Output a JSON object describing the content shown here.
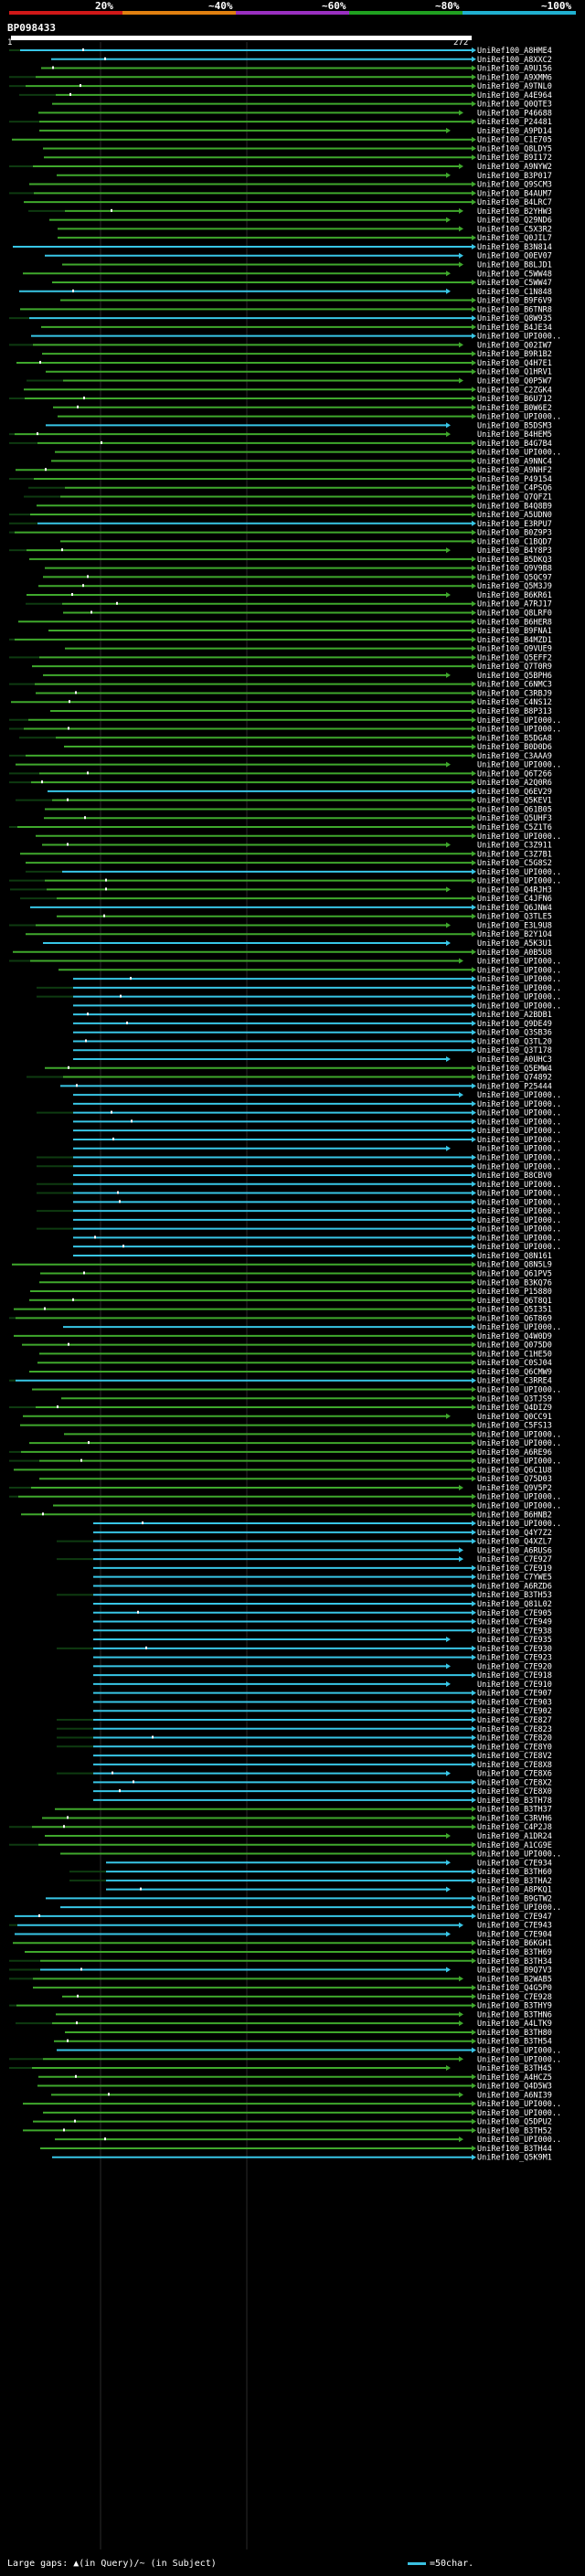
{
  "header": {
    "scale_labels": [
      "20%",
      "~40%",
      "~60%",
      "~80%",
      "~100%"
    ],
    "scale_colors": [
      "#d01818",
      "#e08010",
      "#9a30c0",
      "#20a020",
      "#20b0d0"
    ]
  },
  "query": {
    "id": "BP098433",
    "start": "1",
    "end": "272"
  },
  "legend": {
    "gaps_label": "Large gaps: ▲(in Query)/~ (in Subject)",
    "scale_label": "=50char."
  },
  "colors": {
    "green": "#3fa82c",
    "cyan": "#38c6e6",
    "dark": "#0e3a10"
  },
  "chart_data": {
    "type": "alignment-overview",
    "title": "BP098433",
    "query_range": [
      1,
      272
    ],
    "hits": [
      "UniRef100_A8HME4",
      "UniRef100_A8XXC2",
      "UniRef100_A9U156",
      "UniRef100_A9XMM6",
      "UniRef100_A9TNL0",
      "UniRef100_A4E964",
      "UniRef100_Q0QTE3",
      "UniRef100_P46688",
      "UniRef100_P24481",
      "UniRef100_A9PD14",
      "UniRef100_C1E705",
      "UniRef100_Q8LDY5",
      "UniRef100_B9I172",
      "UniRef100_A9NYW2",
      "UniRef100_B3P017",
      "UniRef100_Q9SCM3",
      "UniRef100_B4AUM7",
      "UniRef100_B4LRC7",
      "UniRef100_B2YHW3",
      "UniRef100_Q29ND6",
      "UniRef100_C5X3R2",
      "UniRef100_Q0JIL7",
      "UniRef100_B3N814",
      "UniRef100_Q0EV07",
      "UniRef100_B8LJD1",
      "UniRef100_C5WW48",
      "UniRef100_C5WW47",
      "UniRef100_C1N848",
      "UniRef100_B9F6V9",
      "UniRef100_B6TNR8",
      "UniRef100_Q8W935",
      "UniRef100_B4JE34",
      "UniRef100_UPI000..",
      "UniRef100_Q02IW7",
      "UniRef100_B9R1B2",
      "UniRef100_Q4H7E1",
      "UniRef100_Q1HRV1",
      "UniRef100_Q0P5W7",
      "UniRef100_C2ZGK4",
      "UniRef100_B6U712",
      "UniRef100_B0W6E2",
      "UniRef100_UPI000..",
      "UniRef100_B5DSM3",
      "UniRef100_B4HEM5",
      "UniRef100_B4G7B4",
      "UniRef100_UPI000..",
      "UniRef100_A9NNC4",
      "UniRef100_A9NHF2",
      "UniRef100_P49154",
      "UniRef100_C4PSQ6",
      "UniRef100_Q7QFZ1",
      "UniRef100_B4Q8B9",
      "UniRef100_A5UDN0",
      "UniRef100_E3RPU7",
      "UniRef100_B0Z9P3",
      "UniRef100_C1BQD7",
      "UniRef100_B4Y8P3",
      "UniRef100_B5DKQ3",
      "UniRef100_Q9V9B8",
      "UniRef100_Q5QC97",
      "UniRef100_Q5M3J9",
      "UniRef100_B6KR61",
      "UniRef100_A7RJ17",
      "UniRef100_Q8LRF0",
      "UniRef100_B6HER8",
      "UniRef100_B9FNA1",
      "UniRef100_B4MZD1",
      "UniRef100_Q9VUE9",
      "UniRef100_Q5EFF2",
      "UniRef100_Q7T0R9",
      "UniRef100_Q5BPH6",
      "UniRef100_C6NMC3",
      "UniRef100_C3RBJ9",
      "UniRef100_C4NS12",
      "UniRef100_B8P313",
      "UniRef100_UPI000..",
      "UniRef100_UPI000..",
      "UniRef100_B5DGA8",
      "UniRef100_B0D0D6",
      "UniRef100_C3AAA9",
      "UniRef100_UPI000..",
      "UniRef100_Q6T266",
      "UniRef100_A2Q0R6",
      "UniRef100_Q6EV29",
      "UniRef100_Q5KEV1",
      "UniRef100_Q61B05",
      "UniRef100_Q5UHF3",
      "UniRef100_C5Z1T6",
      "UniRef100_UPI000..",
      "UniRef100_C3Z911",
      "UniRef100_C3Z7B1",
      "UniRef100_C5G8S2",
      "UniRef100_UPI000..",
      "UniRef100_UPI000..",
      "UniRef100_Q4RJH3",
      "UniRef100_C4JFN6",
      "UniRef100_Q6JNW4",
      "UniRef100_Q3TLE5",
      "UniRef100_E3L9U8",
      "UniRef100_B2Y1O4",
      "UniRef100_A5K3U1",
      "UniRef100_A0B5U8",
      "UniRef100_UPI000..",
      "UniRef100_UPI000..",
      "UniRef100_UPI000..",
      "UniRef100_UPI000..",
      "UniRef100_UPI000..",
      "UniRef100_UPI000..",
      "UniRef100_A2BDB1",
      "UniRef100_Q9DE49",
      "UniRef100_Q3SB36",
      "UniRef100_Q3TL20",
      "UniRef100_Q3T178",
      "UniRef100_A0UHC3",
      "UniRef100_Q5EMW4",
      "UniRef100_Q74892",
      "UniRef100_P25444",
      "UniRef100_UPI000..",
      "UniRef100_UPI000..",
      "UniRef100_UPI000..",
      "UniRef100_UPI000..",
      "UniRef100_UPI000..",
      "UniRef100_UPI000..",
      "UniRef100_UPI000..",
      "UniRef100_UPI000..",
      "UniRef100_UPI000..",
      "UniRef100_B8CBV0",
      "UniRef100_UPI000..",
      "UniRef100_UPI000..",
      "UniRef100_UPI000..",
      "UniRef100_UPI000..",
      "UniRef100_UPI000..",
      "UniRef100_UPI000..",
      "UniRef100_UPI000..",
      "UniRef100_UPI000..",
      "UniRef100_Q8N161",
      "UniRef100_Q8N5L9",
      "UniRef100_Q61PV5",
      "UniRef100_B3KQ76",
      "UniRef100_P15880",
      "UniRef100_Q6T8Q1",
      "UniRef100_Q5I351",
      "UniRef100_Q6T869",
      "UniRef100_UPI000..",
      "UniRef100_Q4W0D9",
      "UniRef100_Q075D0",
      "UniRef100_C1HE50",
      "UniRef100_C0SJ04",
      "UniRef100_Q6CMW9",
      "UniRef100_C3RRE4",
      "UniRef100_UPI000..",
      "UniRef100_Q3TJS9",
      "UniRef100_Q4DIZ9",
      "UniRef100_Q0CC91",
      "UniRef100_C5FS13",
      "UniRef100_UPI000..",
      "UniRef100_UPI000..",
      "UniRef100_A6RE96",
      "UniRef100_UPI000..",
      "UniRef100_Q6C1U8",
      "UniRef100_Q75D03",
      "UniRef100_Q9V5P2",
      "UniRef100_UPI000..",
      "UniRef100_UPI000..",
      "UniRef100_B6HNB2",
      "UniRef100_UPI000..",
      "UniRef100_Q4Y7Z2",
      "UniRef100_Q4XZL7",
      "UniRef100_A6RUS6",
      "UniRef100_C7E927",
      "UniRef100_C7E919",
      "UniRef100_C7YWE5",
      "UniRef100_A6RZD6",
      "UniRef100_B3TH53",
      "UniRef100_Q81L02",
      "UniRef100_C7E905",
      "UniRef100_C7E949",
      "UniRef100_C7E938",
      "UniRef100_C7E935",
      "UniRef100_C7E930",
      "UniRef100_C7E923",
      "UniRef100_C7E920",
      "UniRef100_C7E918",
      "UniRef100_C7E910",
      "UniRef100_C7E907",
      "UniRef100_C7E903",
      "UniRef100_C7E902",
      "UniRef100_C7E827",
      "UniRef100_C7E823",
      "UniRef100_C7E820",
      "UniRef100_C7E8Y0",
      "UniRef100_C7E8V2",
      "UniRef100_C7E8X8",
      "UniRef100_C7E8X6",
      "UniRef100_C7E8X2",
      "UniRef100_C7E8X0",
      "UniRef100_B3TH78",
      "UniRef100_B3TH37",
      "UniRef100_C3RVH6",
      "UniRef100_C4P2J8",
      "UniRef100_A1DR24",
      "UniRef100_A1CG9E",
      "UniRef100_UPI000..",
      "UniRef100_C7E934",
      "UniRef100_B3TH60",
      "UniRef100_B3THA2",
      "UniRef100_A8PKQ1",
      "UniRef100_B9GTW2",
      "UniRef100_UPI000..",
      "UniRef100_C7E947",
      "UniRef100_C7E943",
      "UniRef100_C7E904",
      "UniRef100_B6KGH1",
      "UniRef100_B3TH69",
      "UniRef100_B3TH34",
      "UniRef100_B9Q7V3",
      "UniRef100_B2WAB5",
      "UniRef100_Q4G5P0",
      "UniRef100_C7E928",
      "UniRef100_B3THY9",
      "UniRef100_B3THN6",
      "UniRef100_A4LTK9",
      "UniRef100_B3TH80",
      "UniRef100_B3TH54",
      "UniRef100_UPI000..",
      "UniRef100_UPI000..",
      "UniRef100_B3TH45",
      "UniRef100_A4HCZ5",
      "UniRef100_Q4D5W3",
      "UniRef100_A6NI39",
      "UniRef100_UPI000..",
      "UniRef100_UPI000..",
      "UniRef100_Q5DPU2",
      "UniRef100_B3TH52",
      "UniRef100_UPI000..",
      "UniRef100_B3TH44",
      "UniRef100_Q5K9M1"
    ]
  }
}
